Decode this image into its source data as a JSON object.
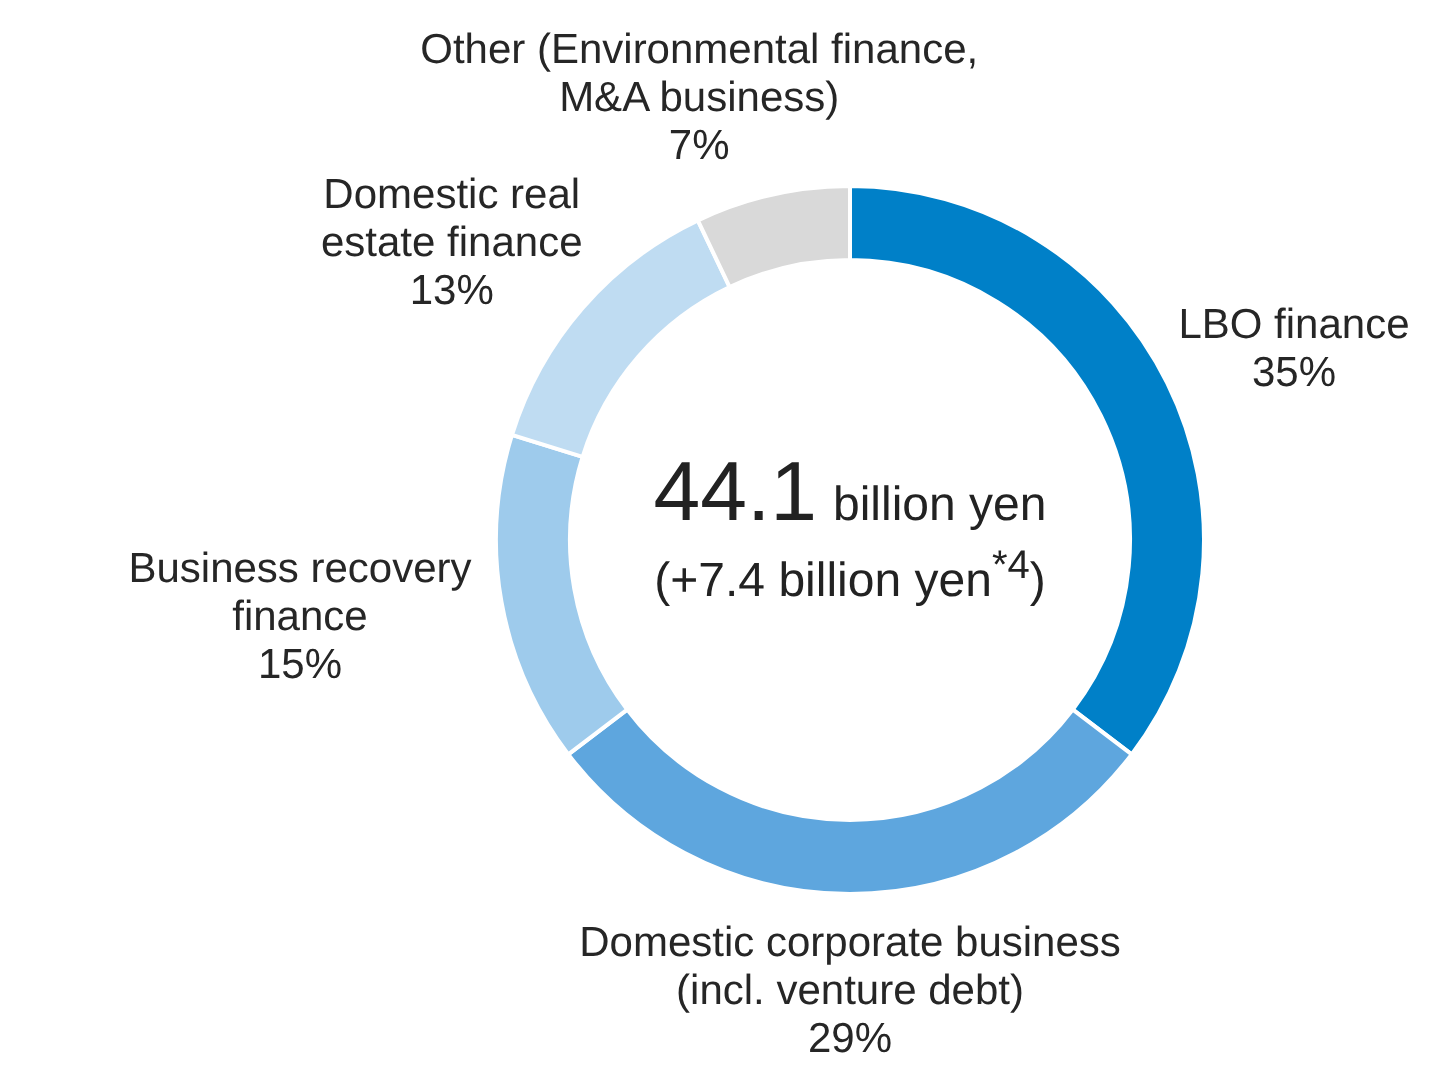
{
  "chart_data": {
    "type": "donut",
    "categories": [
      "LBO finance",
      "Domestic corporate business\n(incl. venture debt)",
      "Business recovery\nfinance",
      "Domestic real\nestate finance",
      "Other (Environmental finance,\nM&A business)"
    ],
    "values": [
      35,
      29,
      15,
      13,
      7
    ],
    "value_labels": [
      "35%",
      "29%",
      "15%",
      "13%",
      "7%"
    ],
    "colors": [
      "#0080c8",
      "#5ea6de",
      "#9ecbec",
      "#bfdcf2",
      "#d9d9d9"
    ],
    "annotations": [
      "44.1",
      "billion yen",
      "(+7.4 billion yen$^{*4}$)"
    ]
  }
}
